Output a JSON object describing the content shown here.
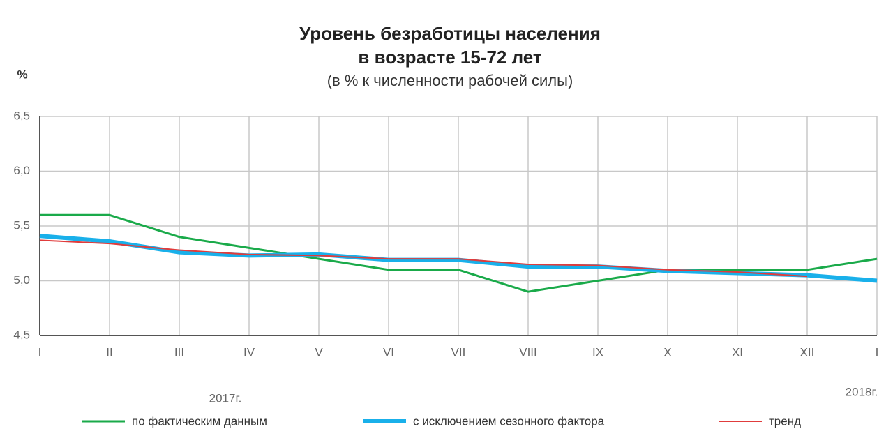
{
  "chart_data": {
    "type": "line",
    "title": "Уровень безработицы населения",
    "title_line2": "в возрасте 15-72 лет",
    "subtitle": "(в % к численности рабочей силы)",
    "y_label": "%",
    "annotations": [
      "2017г.",
      "2018г."
    ],
    "categories": [
      "I",
      "II",
      "III",
      "IV",
      "V",
      "VI",
      "VII",
      "VIII",
      "IX",
      "X",
      "XI",
      "XII",
      "I"
    ],
    "series": [
      {
        "name": "по фактическим данным",
        "color": "#1aaa4a",
        "width": 3,
        "values": [
          5.6,
          5.6,
          5.4,
          5.3,
          5.2,
          5.1,
          5.1,
          4.9,
          5.0,
          5.1,
          5.1,
          5.1,
          5.2
        ]
      },
      {
        "name": "с исключением сезонного фактора",
        "color": "#19b0ea",
        "width": 6,
        "values": [
          5.41,
          5.36,
          5.26,
          5.23,
          5.24,
          5.19,
          5.19,
          5.13,
          5.13,
          5.09,
          5.07,
          5.05,
          5.0
        ]
      },
      {
        "name": "тренд",
        "color": "#e03c3c",
        "width": 2,
        "values": [
          5.37,
          5.34,
          5.28,
          5.24,
          5.23,
          5.2,
          5.2,
          5.15,
          5.14,
          5.1,
          5.08,
          5.04,
          null
        ]
      }
    ],
    "ylim": [
      4.5,
      6.5
    ],
    "yticks": [
      {
        "value": 4.5,
        "label": "4,5"
      },
      {
        "value": 5.0,
        "label": "5,0"
      },
      {
        "value": 5.5,
        "label": "5,5"
      },
      {
        "value": 6.0,
        "label": "6,0"
      },
      {
        "value": 6.5,
        "label": "6,5"
      }
    ],
    "grid": true
  }
}
